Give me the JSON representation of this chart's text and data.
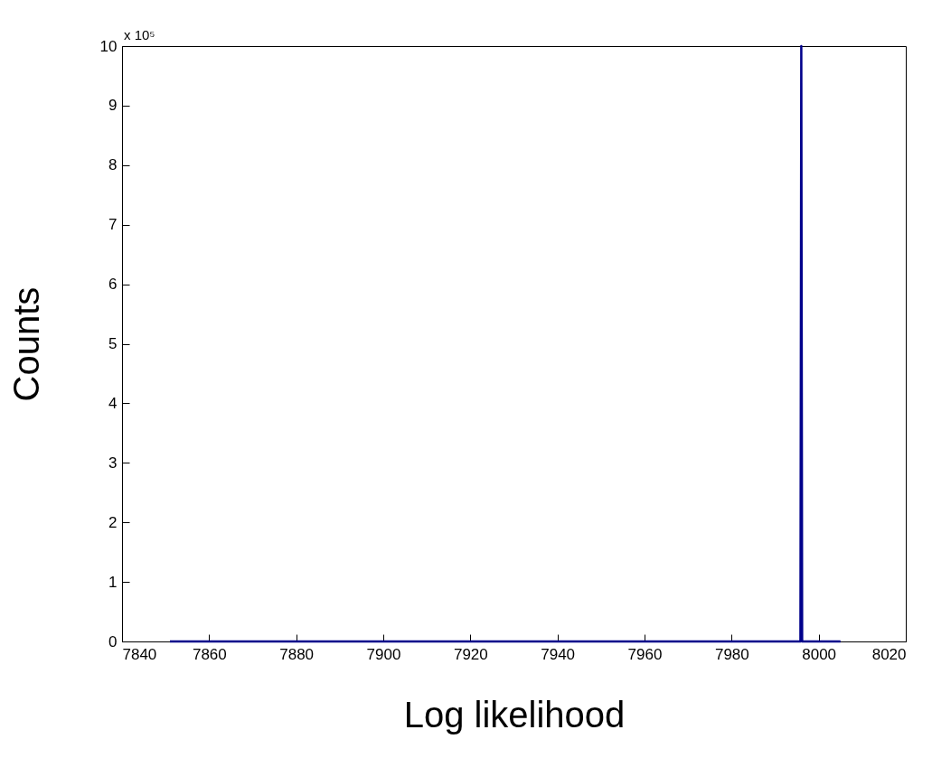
{
  "chart_data": {
    "type": "line",
    "xlabel": "Log likelihood",
    "ylabel": "Counts",
    "annotations": [
      "x 10⁵"
    ],
    "x": [
      7851,
      7995.8,
      7996,
      7996.2,
      8005
    ],
    "series": [
      {
        "color": "#00008b",
        "values": [
          0,
          0,
          10,
          0,
          0
        ]
      }
    ],
    "xlim": [
      7840,
      8020
    ],
    "xticks": [
      7840,
      7860,
      7880,
      7900,
      7920,
      7940,
      7960,
      7980,
      8000,
      8020
    ],
    "ylim": [
      0,
      10
    ],
    "yticks": [
      0,
      1,
      2,
      3,
      4,
      5,
      6,
      7,
      8,
      9,
      10
    ],
    "grid": false,
    "legend": false
  }
}
